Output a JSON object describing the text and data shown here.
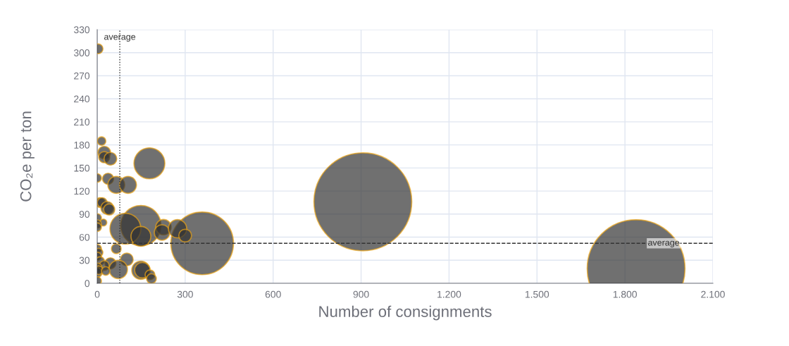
{
  "chart_data": {
    "type": "bubble",
    "xlabel": "Number of consignments",
    "ylabel": "CO₂e per ton",
    "xlim": [
      0,
      2100
    ],
    "xticks": [
      0,
      300,
      600,
      900,
      {
        "value": 1200,
        "label": "1.200"
      },
      {
        "value": 1500,
        "label": "1.500"
      },
      {
        "value": 1800,
        "label": "1.800"
      },
      {
        "value": 2100,
        "label": "2.100"
      }
    ],
    "ylim": [
      0,
      330
    ],
    "yticks": [
      0,
      30,
      60,
      90,
      120,
      150,
      180,
      210,
      240,
      270,
      300,
      330
    ],
    "grid": true,
    "series": [
      {
        "color": "#333333",
        "x": [
          1838,
          906,
          358,
          178,
          149,
          96,
          24,
          24,
          45,
          0,
          37,
          65,
          105,
          10,
          17,
          34,
          41,
          0,
          21,
          0,
          0,
          149,
          226,
          221,
          274,
          300,
          65,
          101,
          0,
          5,
          0,
          10,
          45,
          24,
          72,
          149,
          154,
          180,
          185,
          0,
          0,
          5,
          29,
          0,
          3,
          15
        ],
        "values": [
          19,
          106,
          52,
          156,
          75,
          71,
          170,
          164,
          162,
          137,
          136,
          128,
          128,
          105,
          105,
          98,
          96,
          85,
          79,
          77,
          73,
          61,
          73,
          66,
          71,
          62,
          45,
          31,
          45,
          40,
          35,
          29,
          26,
          23,
          18,
          17,
          17,
          11,
          6,
          20,
          14,
          17,
          16,
          3,
          305,
          185
        ],
        "sizes": [
          1,
          1,
          0.41,
          0.1,
          0.17,
          0.1,
          0.017,
          0.013,
          0.017,
          0.0075,
          0.013,
          0.03,
          0.03,
          0.01,
          0.01,
          0.017,
          0.013,
          0.0075,
          0.005,
          0.0075,
          0.0075,
          0.041,
          0.025,
          0.025,
          0.035,
          0.017,
          0.01,
          0.017,
          0.0075,
          0.0075,
          0.0075,
          0.0075,
          0.013,
          0.01,
          0.035,
          0.035,
          0.025,
          0.01,
          0.01,
          0.01,
          0.01,
          0.0075,
          0.0075,
          0.0075,
          0.01,
          0.0075
        ]
      }
    ],
    "ref_lines": [
      {
        "axis": "x",
        "value": 77,
        "label": "average",
        "line_style": "dotted"
      },
      {
        "axis": "y",
        "value": 52,
        "label": "average",
        "line_style": "dashed"
      }
    ]
  }
}
